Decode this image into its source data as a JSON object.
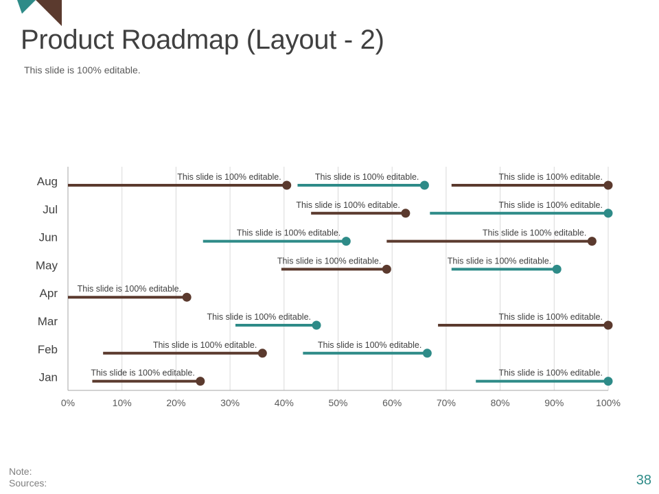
{
  "slide": {
    "title": "Product Roadmap (Layout - 2)",
    "subtitle": "This slide is 100% editable.",
    "note_label": "Note:",
    "sources_label": "Sources:",
    "page_number": "38"
  },
  "colors": {
    "brown": "#5b3a2e",
    "teal": "#2e8b88",
    "text": "#404040",
    "gridline": "#d9d9d9",
    "axis": "#a6a6a6"
  },
  "chart_data": {
    "type": "range-bar",
    "title": "",
    "xlabel": "",
    "ylabel": "",
    "categories": [
      "Aug",
      "Jul",
      "Jun",
      "May",
      "Apr",
      "Mar",
      "Feb",
      "Jan"
    ],
    "x_ticks": [
      "0%",
      "10%",
      "20%",
      "30%",
      "40%",
      "50%",
      "60%",
      "70%",
      "80%",
      "90%",
      "100%"
    ],
    "xlim": [
      0,
      100
    ],
    "grid": true,
    "bars": [
      {
        "category": "Aug",
        "start": 0,
        "end": 40.5,
        "color": "brown",
        "label": "This slide is 100% editable."
      },
      {
        "category": "Aug",
        "start": 42.5,
        "end": 66,
        "color": "teal",
        "label": "This slide is 100% editable."
      },
      {
        "category": "Aug",
        "start": 71,
        "end": 100,
        "color": "brown",
        "label": "This slide is 100% editable."
      },
      {
        "category": "Jul",
        "start": 45,
        "end": 62.5,
        "color": "brown",
        "label": "This slide is 100% editable."
      },
      {
        "category": "Jul",
        "start": 67,
        "end": 100,
        "color": "teal",
        "label": "This slide is 100% editable."
      },
      {
        "category": "Jun",
        "start": 25,
        "end": 51.5,
        "color": "teal",
        "label": "This slide is 100% editable."
      },
      {
        "category": "Jun",
        "start": 59,
        "end": 97,
        "color": "brown",
        "label": "This slide is 100% editable."
      },
      {
        "category": "May",
        "start": 39.5,
        "end": 59,
        "color": "brown",
        "label": "This slide is 100% editable."
      },
      {
        "category": "May",
        "start": 71,
        "end": 90.5,
        "color": "teal",
        "label": "This slide is 100% editable."
      },
      {
        "category": "Apr",
        "start": 0,
        "end": 22,
        "color": "brown",
        "label": "This slide is 100% editable."
      },
      {
        "category": "Mar",
        "start": 31,
        "end": 46,
        "color": "teal",
        "label": "This slide is 100% editable."
      },
      {
        "category": "Mar",
        "start": 68.5,
        "end": 100,
        "color": "brown",
        "label": "This slide is 100% editable."
      },
      {
        "category": "Feb",
        "start": 6.5,
        "end": 36,
        "color": "brown",
        "label": "This slide is 100% editable."
      },
      {
        "category": "Feb",
        "start": 43.5,
        "end": 66.5,
        "color": "teal",
        "label": "This slide is 100% editable."
      },
      {
        "category": "Jan",
        "start": 4.5,
        "end": 24.5,
        "color": "brown",
        "label": "This slide is 100% editable."
      },
      {
        "category": "Jan",
        "start": 75.5,
        "end": 100,
        "color": "teal",
        "label": "This slide is 100% editable."
      }
    ]
  }
}
